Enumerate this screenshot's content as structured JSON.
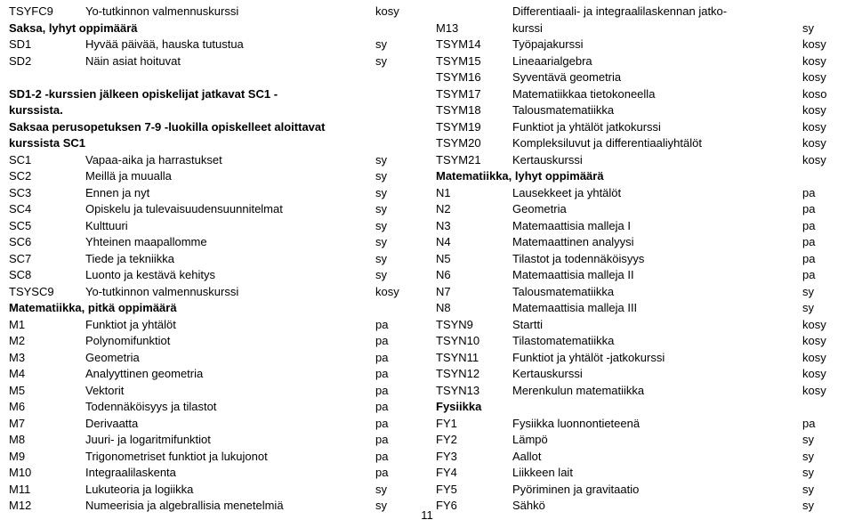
{
  "pageNumber": "11",
  "left": [
    {
      "type": "row",
      "code": "TSYFC9",
      "title": "Yo-tutkinnon valmennuskurssi",
      "tag": "kosy"
    },
    {
      "type": "heading",
      "text": "Saksa, lyhyt oppimäärä"
    },
    {
      "type": "row",
      "code": "SD1",
      "title": "Hyvää päivää, hauska tutustua",
      "tag": "sy"
    },
    {
      "type": "row",
      "code": "SD2",
      "title": "Näin asiat hoituvat",
      "tag": "sy"
    },
    {
      "type": "spacer"
    },
    {
      "type": "note",
      "text": "SD1-2 -kurssien jälkeen opiskelijat jatkavat SC1 -"
    },
    {
      "type": "note",
      "text": "kurssista."
    },
    {
      "type": "note",
      "text": "Saksaa perusopetuksen 7-9 -luokilla opiskelleet aloittavat"
    },
    {
      "type": "note",
      "text": "kurssista SC1"
    },
    {
      "type": "row",
      "code": "SC1",
      "title": "Vapaa-aika ja harrastukset",
      "tag": "sy"
    },
    {
      "type": "row",
      "code": "SC2",
      "title": "Meillä ja muualla",
      "tag": "sy"
    },
    {
      "type": "row",
      "code": "SC3",
      "title": "Ennen ja nyt",
      "tag": "sy"
    },
    {
      "type": "row",
      "code": "SC4",
      "title": "Opiskelu ja tulevaisuudensuunnitelmat",
      "tag": "sy"
    },
    {
      "type": "row",
      "code": "SC5",
      "title": "Kulttuuri",
      "tag": "sy"
    },
    {
      "type": "row",
      "code": "SC6",
      "title": "Yhteinen maapallomme",
      "tag": "sy"
    },
    {
      "type": "row",
      "code": "SC7",
      "title": "Tiede ja tekniikka",
      "tag": "sy"
    },
    {
      "type": "row",
      "code": "SC8",
      "title": "Luonto ja kestävä kehitys",
      "tag": "sy"
    },
    {
      "type": "row",
      "code": "TSYSC9",
      "title": "Yo-tutkinnon valmennuskurssi",
      "tag": "kosy"
    },
    {
      "type": "heading",
      "text": "Matematiikka, pitkä oppimäärä"
    },
    {
      "type": "row",
      "code": "M1",
      "title": "Funktiot ja yhtälöt",
      "tag": "pa"
    },
    {
      "type": "row",
      "code": "M2",
      "title": "Polynomifunktiot",
      "tag": "pa"
    },
    {
      "type": "row",
      "code": "M3",
      "title": "Geometria",
      "tag": "pa"
    },
    {
      "type": "row",
      "code": "M4",
      "title": "Analyyttinen geometria",
      "tag": "pa"
    },
    {
      "type": "row",
      "code": "M5",
      "title": "Vektorit",
      "tag": "pa"
    },
    {
      "type": "row",
      "code": "M6",
      "title": "Todennäköisyys ja tilastot",
      "tag": "pa"
    },
    {
      "type": "row",
      "code": "M7",
      "title": "Derivaatta",
      "tag": "pa"
    },
    {
      "type": "row",
      "code": "M8",
      "title": "Juuri- ja logaritmifunktiot",
      "tag": "pa"
    },
    {
      "type": "row",
      "code": "M9",
      "title": "Trigonometriset funktiot ja lukujonot",
      "tag": "pa"
    },
    {
      "type": "row",
      "code": "M10",
      "title": "Integraalilaskenta",
      "tag": "pa"
    },
    {
      "type": "row",
      "code": "M11",
      "title": "Lukuteoria ja logiikka",
      "tag": "sy"
    },
    {
      "type": "row",
      "code": "M12",
      "title": "Numeerisia ja algebrallisia menetelmiä",
      "tag": "sy"
    }
  ],
  "right": [
    {
      "type": "wrap",
      "code": "",
      "title": "Differentiaali- ja integraalilaskennan jatko-",
      "tag": ""
    },
    {
      "type": "row",
      "code": "M13",
      "title": "kurssi",
      "tag": "sy"
    },
    {
      "type": "row",
      "code": "TSYM14",
      "title": "Työpajakurssi",
      "tag": "kosy"
    },
    {
      "type": "row",
      "code": "TSYM15",
      "title": "Lineaarialgebra",
      "tag": "kosy"
    },
    {
      "type": "row",
      "code": "TSYM16",
      "title": "Syventävä geometria",
      "tag": "kosy"
    },
    {
      "type": "row",
      "code": "TSYM17",
      "title": "Matematiikkaa tietokoneella",
      "tag": "koso"
    },
    {
      "type": "row",
      "code": "TSYM18",
      "title": "Talousmatematiikka",
      "tag": "kosy"
    },
    {
      "type": "row",
      "code": "TSYM19",
      "title": "Funktiot ja yhtälöt jatkokurssi",
      "tag": "kosy"
    },
    {
      "type": "row",
      "code": "TSYM20",
      "title": "Kompleksiluvut ja differentiaaliyhtälöt",
      "tag": "kosy"
    },
    {
      "type": "row",
      "code": "TSYM21",
      "title": "Kertauskurssi",
      "tag": "kosy"
    },
    {
      "type": "heading",
      "text": "Matematiikka, lyhyt oppimäärä"
    },
    {
      "type": "row",
      "code": "N1",
      "title": "Lausekkeet ja yhtälöt",
      "tag": "pa"
    },
    {
      "type": "row",
      "code": "N2",
      "title": "Geometria",
      "tag": "pa"
    },
    {
      "type": "row",
      "code": "N3",
      "title": "Matemaattisia malleja I",
      "tag": "pa"
    },
    {
      "type": "row",
      "code": "N4",
      "title": "Matemaattinen analyysi",
      "tag": "pa"
    },
    {
      "type": "row",
      "code": "N5",
      "title": "Tilastot ja todennäköisyys",
      "tag": "pa"
    },
    {
      "type": "row",
      "code": "N6",
      "title": "Matemaattisia malleja II",
      "tag": "pa"
    },
    {
      "type": "row",
      "code": "N7",
      "title": "Talousmatematiikka",
      "tag": "sy"
    },
    {
      "type": "row",
      "code": "N8",
      "title": "Matemaattisia malleja III",
      "tag": "sy"
    },
    {
      "type": "row",
      "code": "TSYN9",
      "title": "Startti",
      "tag": "kosy"
    },
    {
      "type": "row",
      "code": "TSYN10",
      "title": "Tilastomatematiikka",
      "tag": "kosy"
    },
    {
      "type": "row",
      "code": "TSYN11",
      "title": "Funktiot ja yhtälöt -jatkokurssi",
      "tag": "kosy"
    },
    {
      "type": "row",
      "code": "TSYN12",
      "title": "Kertauskurssi",
      "tag": "kosy"
    },
    {
      "type": "row",
      "code": "TSYN13",
      "title": "Merenkulun matematiikka",
      "tag": "kosy"
    },
    {
      "type": "heading",
      "text": "Fysiikka"
    },
    {
      "type": "row",
      "code": "FY1",
      "title": "Fysiikka luonnontieteenä",
      "tag": "pa"
    },
    {
      "type": "row",
      "code": "FY2",
      "title": "Lämpö",
      "tag": "sy"
    },
    {
      "type": "row",
      "code": "FY3",
      "title": "Aallot",
      "tag": "sy"
    },
    {
      "type": "row",
      "code": "FY4",
      "title": "Liikkeen lait",
      "tag": "sy"
    },
    {
      "type": "row",
      "code": "FY5",
      "title": "Pyöriminen ja gravitaatio",
      "tag": "sy"
    },
    {
      "type": "row",
      "code": "FY6",
      "title": "Sähkö",
      "tag": "sy"
    }
  ]
}
